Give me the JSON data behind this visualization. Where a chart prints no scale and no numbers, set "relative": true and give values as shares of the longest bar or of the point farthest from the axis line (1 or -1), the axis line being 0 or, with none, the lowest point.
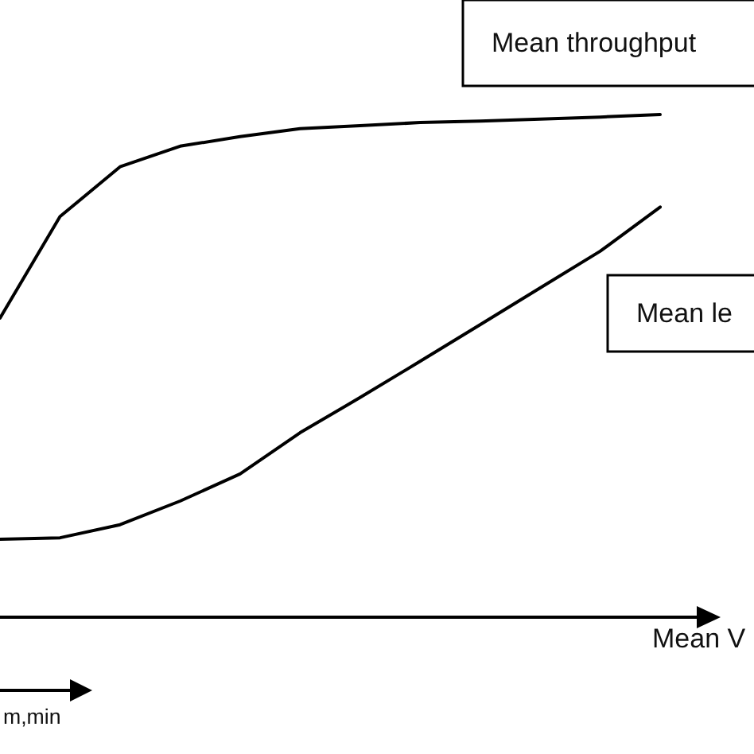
{
  "chart_data": {
    "type": "line",
    "relative": true,
    "xlabel": "Mean V",
    "categories": [
      null,
      null,
      null,
      null,
      null,
      null,
      null,
      null,
      null,
      null,
      null,
      null
    ],
    "tick_labels": false,
    "grid": false,
    "legend": false,
    "marker": "none",
    "annotations": [
      "$_{m,min}$"
    ],
    "series": [
      {
        "name": "Mean throughput",
        "color": "#000000",
        "values": [
          0.595,
          0.797,
          0.896,
          0.937,
          0.956,
          0.972,
          0.978,
          0.984,
          0.987,
          0.991,
          0.995,
          1
        ]
      },
      {
        "name": "Mean le",
        "color": "#000000",
        "values": [
          0.155,
          0.158,
          0.184,
          0.231,
          0.285,
          0.367,
          0.437,
          0.509,
          0.582,
          0.655,
          0.728,
          0.816
        ]
      }
    ]
  }
}
